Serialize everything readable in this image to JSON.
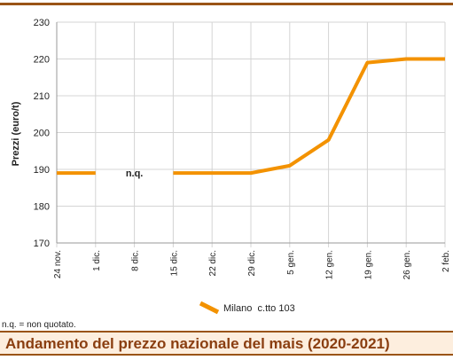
{
  "chart_data": {
    "type": "line",
    "title": "Andamento del prezzo nazionale del mais (2020-2021)",
    "ylabel": "Prezzi (euro/t)",
    "xlabel": "",
    "ylim": [
      170,
      230
    ],
    "yticks": [
      170,
      180,
      190,
      200,
      210,
      220,
      230
    ],
    "grid": true,
    "legend_position": "bottom-center",
    "categories": [
      "24 nov.",
      "1 dic.",
      "8 dic.",
      "15 dic.",
      "22 dic.",
      "29 dic.",
      "5 gen.",
      "12 gen.",
      "19 gen.",
      "26 gen.",
      "2 feb."
    ],
    "series": [
      {
        "name": "Milano  c.tto 103",
        "color": "#f39200",
        "values": [
          189,
          189,
          null,
          189,
          189,
          189,
          191,
          198,
          219,
          220,
          220
        ]
      }
    ],
    "annotations": [
      {
        "text": "n.q.",
        "category": "8 dic.",
        "value": 189
      }
    ]
  },
  "footnote": "n.q. = non quotato.",
  "caption": "Andamento del prezzo nazionale del mais (2020-2021)"
}
